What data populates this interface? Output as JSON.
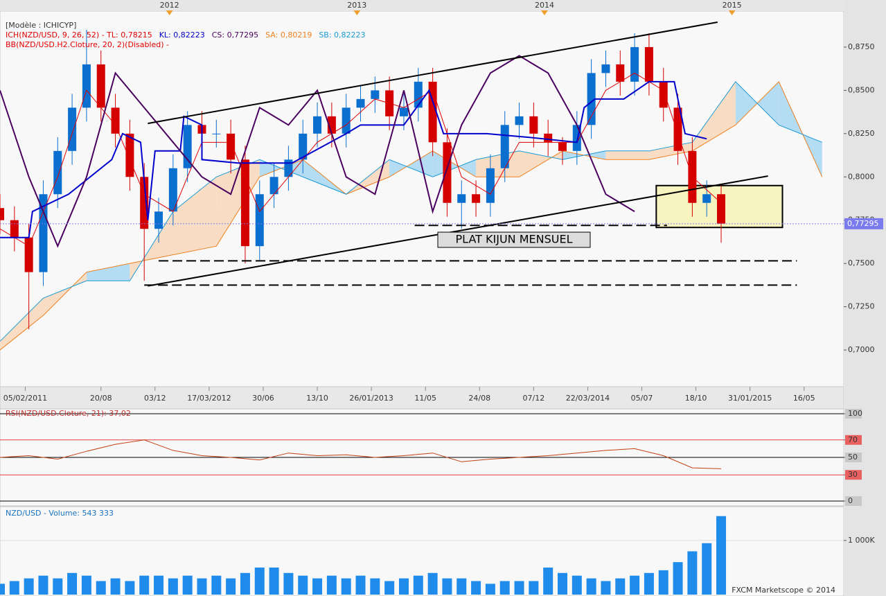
{
  "chart_data": [
    {
      "type": "candlestick",
      "model_label": "[Modèle : ICHICYP]",
      "legend": [
        {
          "text": "ICH(NZD/USD, 9, 26, 52) -  TL: 0,78215",
          "color": "#e00000"
        },
        {
          "text": "KL: 0,82223",
          "color": "#0000cc"
        },
        {
          "text": "CS: 0,77295",
          "color": "#4b0060"
        },
        {
          "text": "SA: 0,80219",
          "color": "#f08020"
        },
        {
          "text": "SB: 0,82223",
          "color": "#1a9ad6"
        }
      ],
      "legend2": {
        "text": "BB(NZD/USD.H2.Cloture, 20, 2)(Disabled) -",
        "color": "#e00000"
      },
      "annotation": "PLAT KIJUN MENSUEL",
      "xlim": [
        0,
        234
      ],
      "ylim": [
        0.6788,
        0.9022
      ],
      "year_ticks": [
        {
          "value": 47,
          "label": "2012"
        },
        {
          "value": 99,
          "label": "2013"
        },
        {
          "value": 151,
          "label": "2014"
        },
        {
          "value": 203,
          "label": "2015"
        }
      ],
      "xticks": [
        {
          "value": 7,
          "label": "05/02/2011"
        },
        {
          "value": 28,
          "label": "20/08"
        },
        {
          "value": 43,
          "label": "03/12"
        },
        {
          "value": 58,
          "label": "17/03/2012"
        },
        {
          "value": 73,
          "label": "30/06"
        },
        {
          "value": 88,
          "label": "13/10"
        },
        {
          "value": 103,
          "label": "26/01/2013"
        },
        {
          "value": 118,
          "label": "11/05"
        },
        {
          "value": 133,
          "label": "24/08"
        },
        {
          "value": 148,
          "label": "07/12"
        },
        {
          "value": 163,
          "label": "22/03/2014"
        },
        {
          "value": 178,
          "label": "05/07"
        },
        {
          "value": 193,
          "label": "18/10"
        },
        {
          "value": 208,
          "label": "31/01/2015"
        },
        {
          "value": 223,
          "label": "16/05"
        }
      ],
      "yticks": [
        {
          "value": 0.7,
          "label": "0,7000"
        },
        {
          "value": 0.725,
          "label": "0,7250"
        },
        {
          "value": 0.75,
          "label": "0,7500"
        },
        {
          "value": 0.775,
          "label": "0,7750"
        },
        {
          "value": 0.8,
          "label": "0,8000"
        },
        {
          "value": 0.825,
          "label": "0,8250"
        },
        {
          "value": 0.85,
          "label": "0,8500"
        },
        {
          "value": 0.875,
          "label": "0,8750"
        }
      ],
      "x": [
        0,
        4,
        8,
        12,
        16,
        20,
        24,
        28,
        32,
        36,
        40,
        44,
        48,
        52,
        56,
        60,
        64,
        68,
        72,
        76,
        80,
        84,
        88,
        92,
        96,
        100,
        104,
        108,
        112,
        116,
        120,
        124,
        128,
        132,
        136,
        140,
        144,
        148,
        152,
        156,
        160,
        164,
        168,
        172,
        176,
        180,
        184,
        188,
        192,
        196,
        200
      ],
      "open": [
        0.782,
        0.775,
        0.765,
        0.745,
        0.79,
        0.815,
        0.84,
        0.865,
        0.84,
        0.825,
        0.8,
        0.77,
        0.78,
        0.805,
        0.83,
        0.825,
        0.825,
        0.81,
        0.76,
        0.79,
        0.8,
        0.81,
        0.825,
        0.835,
        0.825,
        0.84,
        0.845,
        0.85,
        0.835,
        0.84,
        0.855,
        0.82,
        0.785,
        0.79,
        0.785,
        0.805,
        0.83,
        0.835,
        0.825,
        0.82,
        0.815,
        0.83,
        0.86,
        0.865,
        0.855,
        0.875,
        0.855,
        0.84,
        0.815,
        0.785,
        0.79
      ],
      "high": [
        0.79,
        0.783,
        0.773,
        0.798,
        0.823,
        0.848,
        0.885,
        0.873,
        0.848,
        0.833,
        0.808,
        0.788,
        0.813,
        0.838,
        0.838,
        0.833,
        0.833,
        0.818,
        0.798,
        0.808,
        0.818,
        0.833,
        0.843,
        0.843,
        0.848,
        0.853,
        0.858,
        0.858,
        0.848,
        0.863,
        0.863,
        0.828,
        0.798,
        0.798,
        0.813,
        0.838,
        0.843,
        0.843,
        0.833,
        0.823,
        0.838,
        0.868,
        0.873,
        0.873,
        0.883,
        0.883,
        0.863,
        0.848,
        0.823,
        0.798,
        0.795
      ],
      "low": [
        0.767,
        0.757,
        0.712,
        0.737,
        0.782,
        0.807,
        0.832,
        0.832,
        0.817,
        0.792,
        0.74,
        0.762,
        0.772,
        0.797,
        0.817,
        0.817,
        0.802,
        0.75,
        0.752,
        0.782,
        0.792,
        0.802,
        0.817,
        0.817,
        0.817,
        0.832,
        0.837,
        0.827,
        0.827,
        0.832,
        0.812,
        0.777,
        0.77,
        0.777,
        0.777,
        0.797,
        0.822,
        0.817,
        0.812,
        0.807,
        0.807,
        0.822,
        0.852,
        0.847,
        0.847,
        0.847,
        0.832,
        0.807,
        0.777,
        0.777,
        0.762
      ],
      "close": [
        0.775,
        0.765,
        0.745,
        0.79,
        0.815,
        0.84,
        0.865,
        0.84,
        0.825,
        0.8,
        0.77,
        0.78,
        0.805,
        0.83,
        0.825,
        0.825,
        0.81,
        0.76,
        0.79,
        0.8,
        0.81,
        0.825,
        0.835,
        0.825,
        0.84,
        0.845,
        0.85,
        0.835,
        0.84,
        0.855,
        0.82,
        0.785,
        0.79,
        0.785,
        0.805,
        0.83,
        0.835,
        0.825,
        0.82,
        0.815,
        0.83,
        0.86,
        0.865,
        0.855,
        0.875,
        0.855,
        0.84,
        0.815,
        0.785,
        0.79,
        0.773
      ],
      "up_color": "#0b6fd0",
      "down_color": "#d40000",
      "cloud": {
        "x": [
          0,
          12,
          24,
          36,
          48,
          60,
          72,
          84,
          96,
          108,
          120,
          132,
          144,
          156,
          168,
          180,
          192,
          204,
          216,
          228
        ],
        "span_a": {
          "color": "#f08020",
          "values": [
            0.7,
            0.72,
            0.745,
            0.75,
            0.755,
            0.76,
            0.8,
            0.81,
            0.79,
            0.8,
            0.815,
            0.8,
            0.8,
            0.815,
            0.81,
            0.81,
            0.815,
            0.83,
            0.855,
            0.8
          ]
        },
        "span_b": {
          "color": "#1a9ad6",
          "values": [
            0.705,
            0.73,
            0.74,
            0.74,
            0.78,
            0.8,
            0.81,
            0.8,
            0.79,
            0.81,
            0.8,
            0.81,
            0.815,
            0.81,
            0.815,
            0.815,
            0.82,
            0.855,
            0.83,
            0.82
          ]
        },
        "bull_fill": "#b4dcf2",
        "bear_fill": "#f9dcc4"
      },
      "tenkan": {
        "color": "#e00000",
        "x": [
          0,
          8,
          16,
          24,
          32,
          40,
          48,
          56,
          64,
          72,
          80,
          88,
          96,
          104,
          112,
          120,
          128,
          136,
          144,
          152,
          160,
          168,
          176,
          184,
          192,
          200
        ],
        "values": [
          0.77,
          0.76,
          0.8,
          0.85,
          0.83,
          0.79,
          0.78,
          0.82,
          0.82,
          0.78,
          0.8,
          0.82,
          0.83,
          0.845,
          0.84,
          0.85,
          0.8,
          0.79,
          0.82,
          0.82,
          0.82,
          0.85,
          0.86,
          0.85,
          0.8,
          0.785
        ]
      },
      "kijun": {
        "color": "#0000cc",
        "x": [
          0,
          8,
          9,
          19,
          31,
          34,
          39,
          41,
          43,
          50,
          51,
          56,
          56,
          66,
          81,
          96,
          100,
          112,
          119,
          123,
          135,
          146,
          160,
          162,
          165,
          173,
          180,
          187,
          190,
          196
        ],
        "values": [
          0.765,
          0.765,
          0.78,
          0.79,
          0.81,
          0.825,
          0.82,
          0.775,
          0.815,
          0.815,
          0.835,
          0.83,
          0.81,
          0.808,
          0.808,
          0.825,
          0.83,
          0.83,
          0.85,
          0.825,
          0.825,
          0.823,
          0.82,
          0.84,
          0.845,
          0.845,
          0.855,
          0.855,
          0.825,
          0.822
        ]
      },
      "chikou": {
        "color": "#4b0060",
        "x": [
          0,
          8,
          16,
          24,
          32,
          40,
          48,
          56,
          64,
          72,
          80,
          88,
          96,
          104,
          112,
          120,
          128,
          136,
          144,
          152,
          160,
          168,
          176
        ],
        "values": [
          0.85,
          0.8,
          0.76,
          0.8,
          0.86,
          0.84,
          0.82,
          0.8,
          0.79,
          0.84,
          0.83,
          0.85,
          0.8,
          0.79,
          0.85,
          0.78,
          0.83,
          0.86,
          0.87,
          0.86,
          0.83,
          0.79,
          0.78
        ]
      },
      "trendlines": [
        {
          "x": [
            41,
            199
          ],
          "y": [
            0.8309,
            0.8894
          ]
        },
        {
          "x": [
            41,
            213
          ],
          "y": [
            0.737,
            0.8005
          ]
        }
      ],
      "support_lines": [
        {
          "x": [
            44,
            221
          ],
          "y": 0.7515
        },
        {
          "x": [
            40,
            221
          ],
          "y": 0.7375
        },
        {
          "x": [
            115,
            185
          ],
          "y": 0.772
        }
      ],
      "zone": {
        "x": [
          182,
          217
        ],
        "y": [
          0.7708,
          0.795
        ],
        "color": "#f8f4c0"
      },
      "last_price": {
        "value": 0.77295,
        "label": "0,77295"
      },
      "last_price_color": "#7b7bf0"
    },
    {
      "type": "line",
      "title": "RSI(NZD/USD.Cloture, 21): 37,02",
      "xlim": [
        0,
        234
      ],
      "ylim": [
        0,
        100
      ],
      "yticks": [
        0,
        30,
        50,
        70,
        100
      ],
      "tick_colors": [
        "#000000",
        "#e04040",
        "#000000",
        "#e04040",
        "#000000"
      ],
      "x": [
        0,
        8,
        16,
        24,
        32,
        40,
        48,
        56,
        64,
        72,
        80,
        88,
        96,
        104,
        112,
        120,
        128,
        136,
        144,
        152,
        160,
        168,
        176,
        184,
        192,
        200
      ],
      "values": [
        50,
        52,
        48,
        57,
        65,
        70,
        58,
        52,
        50,
        47,
        55,
        52,
        53,
        50,
        52,
        55,
        45,
        48,
        50,
        52,
        55,
        58,
        60,
        52,
        38,
        37.02
      ],
      "color": "#c04010"
    },
    {
      "type": "bar",
      "title": "NZD/USD - Volume: 543 333",
      "xlim": [
        0,
        234
      ],
      "ylim": [
        0,
        1600000
      ],
      "yticks": [
        {
          "value": 1000000,
          "label": "1 000K"
        }
      ],
      "x": [
        0,
        4,
        8,
        12,
        16,
        20,
        24,
        28,
        32,
        36,
        40,
        44,
        48,
        52,
        56,
        60,
        64,
        68,
        72,
        76,
        80,
        84,
        88,
        92,
        96,
        100,
        104,
        108,
        112,
        116,
        120,
        124,
        128,
        132,
        136,
        140,
        144,
        148,
        152,
        156,
        160,
        164,
        168,
        172,
        176,
        180,
        184,
        188,
        192,
        196,
        200
      ],
      "values": [
        200000,
        250000,
        300000,
        350000,
        300000,
        400000,
        350000,
        250000,
        300000,
        250000,
        350000,
        350000,
        300000,
        350000,
        300000,
        350000,
        300000,
        400000,
        500000,
        500000,
        400000,
        350000,
        300000,
        350000,
        300000,
        350000,
        300000,
        250000,
        300000,
        350000,
        400000,
        300000,
        300000,
        250000,
        200000,
        250000,
        250000,
        250000,
        500000,
        400000,
        350000,
        300000,
        250000,
        300000,
        350000,
        400000,
        450000,
        600000,
        800000,
        950000,
        1450000
      ],
      "color": "#1f8ceb"
    }
  ],
  "footer": "FXCM Marketscope © 2014"
}
